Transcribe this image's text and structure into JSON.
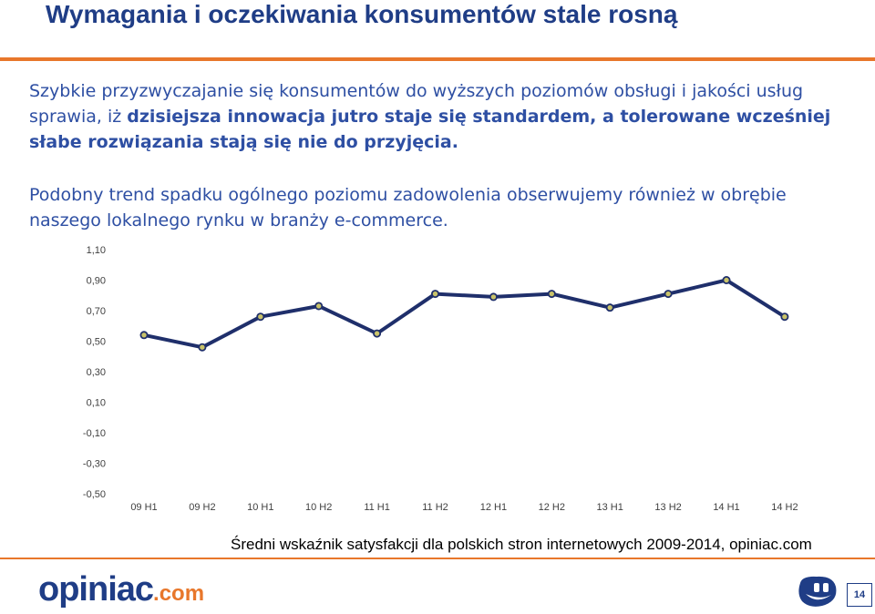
{
  "header": {
    "title": "Wymagania i oczekiwania konsumentów stale rosną"
  },
  "body": {
    "p1_part1": "Szybkie przyzwyczajanie się konsumentów do wyższych poziomów obsługi i jakości usług sprawia, iż ",
    "p1_part2": "dzisiejsza innowacja jutro staje się standardem, a tolerowane wcześniej słabe rozwiązania stają się nie do przyjęcia.",
    "p2": "Podobny trend spadku ogólnego poziomu zadowolenia obserwujemy również w obrębie naszego lokalnego rynku w branży e-commerce."
  },
  "chart_data": {
    "type": "line",
    "categories": [
      "09 H1",
      "09 H2",
      "10 H1",
      "10 H2",
      "11 H1",
      "11 H2",
      "12 H1",
      "12 H2",
      "13 H1",
      "13 H2",
      "14 H1",
      "14 H2"
    ],
    "values": [
      0.54,
      0.46,
      0.66,
      0.73,
      0.55,
      0.81,
      0.79,
      0.81,
      0.72,
      0.81,
      0.9,
      0.66
    ],
    "ylim": [
      -0.5,
      1.1
    ],
    "yticks": [
      "1,10",
      "0,90",
      "0,70",
      "0,50",
      "0,30",
      "0,10",
      "-0,10",
      "-0,30",
      "-0,50"
    ],
    "line_color": "#1f2f6b",
    "marker_color": "#c9c36a",
    "grid": false
  },
  "caption": "Średni wskaźnik satysfakcji dla polskich stron internetowych 2009-2014, opiniac.com",
  "footer": {
    "logo_main": "opiniac",
    "logo_suffix": ".com",
    "page_number": "14"
  },
  "colors": {
    "accent": "#e8772b",
    "brand": "#1f3d86"
  }
}
